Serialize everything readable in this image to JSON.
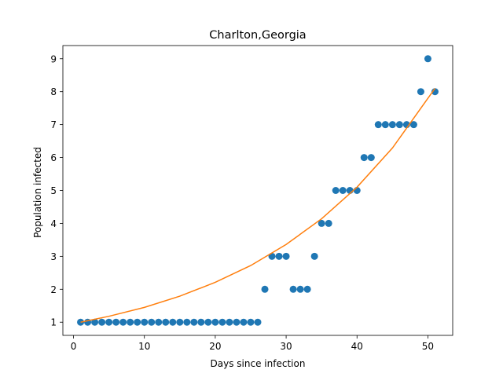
{
  "chart_data": {
    "type": "scatter",
    "title": "Charlton,Georgia",
    "xlabel": "Days since infection",
    "ylabel": "Population infected",
    "xlim": [
      -1.5,
      53.5
    ],
    "ylim": [
      0.6,
      9.4
    ],
    "xticks": [
      0,
      10,
      20,
      30,
      40,
      50
    ],
    "yticks": [
      1,
      2,
      3,
      4,
      5,
      6,
      7,
      8,
      9
    ],
    "grid": false,
    "legend": "none",
    "colors": {
      "points": "#1f77b4",
      "fit": "#ff7f0e"
    },
    "series": [
      {
        "kind": "points",
        "x": [
          1,
          2,
          3,
          4,
          5,
          6,
          7,
          8,
          9,
          10,
          11,
          12,
          13,
          14,
          15,
          16,
          17,
          18,
          19,
          20,
          21,
          22,
          23,
          24,
          25,
          26,
          27,
          28,
          29,
          30,
          31,
          32,
          33,
          34,
          35,
          36,
          37,
          38,
          39,
          40,
          41,
          42,
          43,
          44,
          45,
          46,
          47,
          48,
          49,
          50,
          51
        ],
        "y": [
          1,
          1,
          1,
          1,
          1,
          1,
          1,
          1,
          1,
          1,
          1,
          1,
          1,
          1,
          1,
          1,
          1,
          1,
          1,
          1,
          1,
          1,
          1,
          1,
          1,
          1,
          2,
          3,
          3,
          3,
          2,
          2,
          2,
          3,
          4,
          4,
          5,
          5,
          5,
          5,
          6,
          6,
          7,
          7,
          7,
          7,
          7,
          7,
          8,
          9,
          8
        ]
      },
      {
        "kind": "fit-curve",
        "x": [
          1,
          5,
          10,
          15,
          20,
          25,
          30,
          35,
          40,
          45,
          51
        ],
        "y": [
          1.0,
          1.18,
          1.45,
          1.79,
          2.21,
          2.72,
          3.36,
          4.14,
          5.1,
          6.29,
          8.1
        ]
      }
    ]
  }
}
